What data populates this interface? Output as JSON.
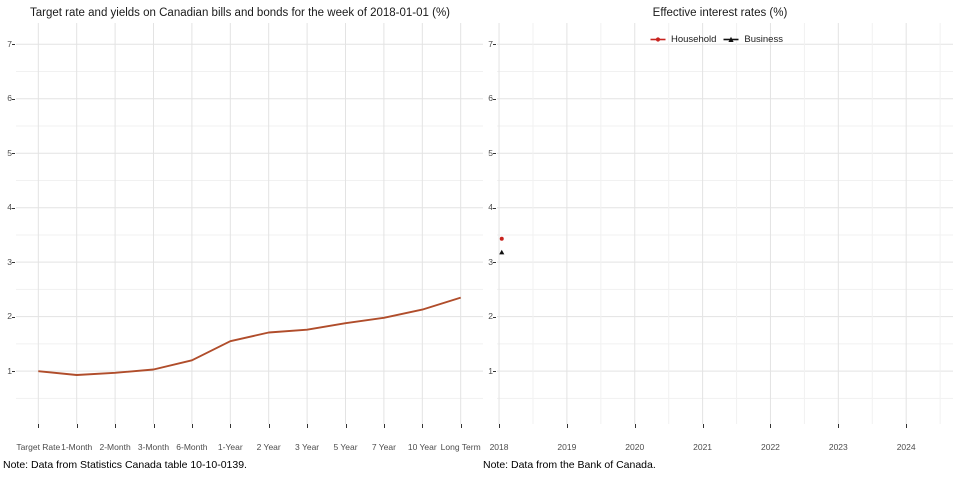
{
  "chart_data": [
    {
      "type": "line",
      "title": "Target rate and yields on Canadian bills and bonds for the week of 2018-01-01 (%)",
      "note": "Note: Data from Statistics Canada table 10-10-0139.",
      "categories": [
        "Target Rate",
        "1-Month",
        "2-Month",
        "3-Month",
        "6-Month",
        "1-Year",
        "2 Year",
        "3 Year",
        "5 Year",
        "7 Year",
        "10 Year",
        "Long Term"
      ],
      "values": [
        1.0,
        0.93,
        0.97,
        1.03,
        1.2,
        1.55,
        1.71,
        1.76,
        1.88,
        1.98,
        2.13,
        2.35
      ],
      "line_color": "#b04d2b",
      "yticks": [
        1,
        2,
        3,
        4,
        5,
        6,
        7
      ],
      "ylim": [
        0.03,
        7.39
      ],
      "grid": true,
      "legend": "none"
    },
    {
      "type": "scatter",
      "title": "Effective interest rates (%)",
      "note": "Note: Data from the Bank of Canada.",
      "xticks": [
        2018,
        2019,
        2020,
        2021,
        2022,
        2023,
        2024
      ],
      "xlim": [
        2017.97,
        2024.69
      ],
      "yticks": [
        1,
        2,
        3,
        4,
        5,
        6,
        7
      ],
      "ylim": [
        0.03,
        7.39
      ],
      "grid": true,
      "legend_position": "top-center-inside",
      "series": [
        {
          "name": "Household",
          "color": "#c8231e",
          "marker": "circle",
          "points": [
            {
              "x": 2018.04,
              "y": 3.43
            }
          ]
        },
        {
          "name": "Business",
          "color": "#111111",
          "marker": "triangle",
          "points": [
            {
              "x": 2018.04,
              "y": 3.18
            }
          ]
        }
      ]
    }
  ],
  "colors": {
    "grid_major": "#e3e3e3",
    "grid_minor": "#f1f1f1",
    "tick": "#333333",
    "tick_label": "#4d4d4d"
  }
}
